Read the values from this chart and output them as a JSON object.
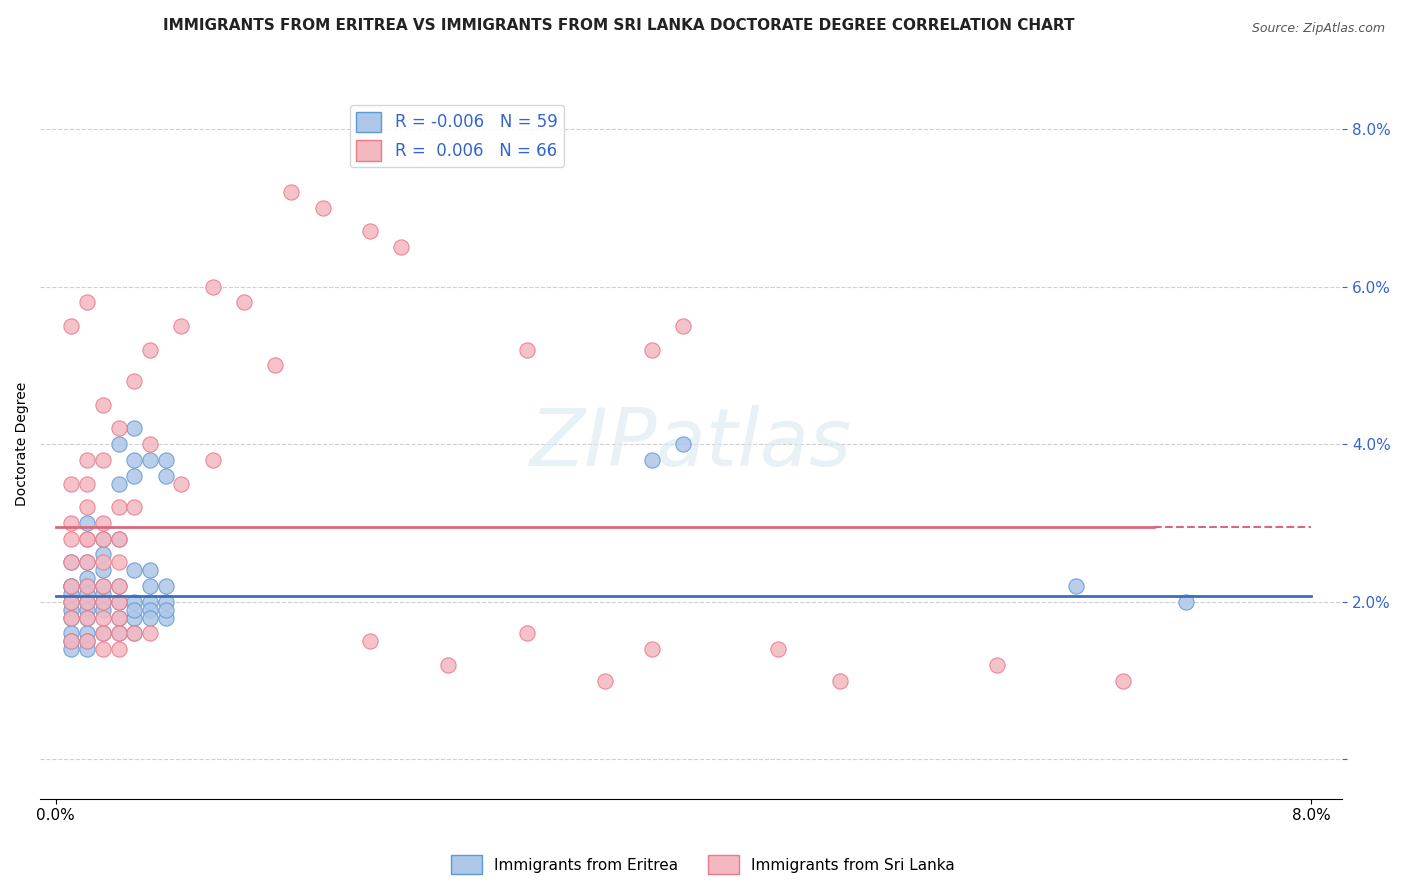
{
  "title": "IMMIGRANTS FROM ERITREA VS IMMIGRANTS FROM SRI LANKA DOCTORATE DEGREE CORRELATION CHART",
  "source": "Source: ZipAtlas.com",
  "ylabel": "Doctorate Degree",
  "xlim": [
    -0.001,
    0.082
  ],
  "ylim": [
    -0.005,
    0.085
  ],
  "x_ticks": [
    0.0,
    0.08
  ],
  "y_ticks": [
    0.0,
    0.02,
    0.04,
    0.06,
    0.08
  ],
  "watermark": "ZIPatlas",
  "eritrea_color": "#aec6e8",
  "eritrea_edge_color": "#5b9bd5",
  "srilanka_color": "#f4b8c1",
  "srilanka_edge_color": "#e87a8a",
  "eritrea_line_color": "#3a6fbd",
  "srilanka_line_color": "#d9687a",
  "eritrea_scatter": [
    [
      0.005,
      0.038
    ],
    [
      0.004,
      0.04
    ],
    [
      0.006,
      0.038
    ],
    [
      0.005,
      0.042
    ],
    [
      0.003,
      0.028
    ],
    [
      0.002,
      0.03
    ],
    [
      0.003,
      0.026
    ],
    [
      0.004,
      0.028
    ],
    [
      0.002,
      0.022
    ],
    [
      0.003,
      0.024
    ],
    [
      0.001,
      0.022
    ],
    [
      0.002,
      0.023
    ],
    [
      0.001,
      0.025
    ],
    [
      0.002,
      0.025
    ],
    [
      0.001,
      0.02
    ],
    [
      0.002,
      0.02
    ],
    [
      0.001,
      0.021
    ],
    [
      0.001,
      0.022
    ],
    [
      0.002,
      0.021
    ],
    [
      0.001,
      0.019
    ],
    [
      0.002,
      0.019
    ],
    [
      0.001,
      0.018
    ],
    [
      0.002,
      0.018
    ],
    [
      0.001,
      0.016
    ],
    [
      0.002,
      0.016
    ],
    [
      0.003,
      0.016
    ],
    [
      0.001,
      0.015
    ],
    [
      0.002,
      0.015
    ],
    [
      0.001,
      0.014
    ],
    [
      0.002,
      0.014
    ],
    [
      0.003,
      0.02
    ],
    [
      0.003,
      0.021
    ],
    [
      0.003,
      0.022
    ],
    [
      0.004,
      0.022
    ],
    [
      0.003,
      0.019
    ],
    [
      0.004,
      0.02
    ],
    [
      0.004,
      0.018
    ],
    [
      0.005,
      0.018
    ],
    [
      0.004,
      0.016
    ],
    [
      0.005,
      0.016
    ],
    [
      0.005,
      0.02
    ],
    [
      0.006,
      0.02
    ],
    [
      0.005,
      0.019
    ],
    [
      0.006,
      0.019
    ],
    [
      0.006,
      0.018
    ],
    [
      0.007,
      0.018
    ],
    [
      0.006,
      0.022
    ],
    [
      0.007,
      0.022
    ],
    [
      0.005,
      0.024
    ],
    [
      0.006,
      0.024
    ],
    [
      0.007,
      0.02
    ],
    [
      0.007,
      0.019
    ],
    [
      0.004,
      0.035
    ],
    [
      0.005,
      0.036
    ],
    [
      0.007,
      0.038
    ],
    [
      0.007,
      0.036
    ],
    [
      0.065,
      0.022
    ],
    [
      0.072,
      0.02
    ],
    [
      0.038,
      0.038
    ],
    [
      0.04,
      0.04
    ]
  ],
  "srilanka_scatter": [
    [
      0.015,
      0.072
    ],
    [
      0.017,
      0.07
    ],
    [
      0.02,
      0.067
    ],
    [
      0.022,
      0.065
    ],
    [
      0.01,
      0.06
    ],
    [
      0.012,
      0.058
    ],
    [
      0.008,
      0.055
    ],
    [
      0.006,
      0.052
    ],
    [
      0.014,
      0.05
    ],
    [
      0.03,
      0.052
    ],
    [
      0.001,
      0.055
    ],
    [
      0.002,
      0.058
    ],
    [
      0.005,
      0.048
    ],
    [
      0.003,
      0.045
    ],
    [
      0.004,
      0.042
    ],
    [
      0.006,
      0.04
    ],
    [
      0.002,
      0.038
    ],
    [
      0.003,
      0.038
    ],
    [
      0.008,
      0.035
    ],
    [
      0.01,
      0.038
    ],
    [
      0.001,
      0.035
    ],
    [
      0.002,
      0.035
    ],
    [
      0.004,
      0.032
    ],
    [
      0.005,
      0.032
    ],
    [
      0.001,
      0.03
    ],
    [
      0.002,
      0.032
    ],
    [
      0.003,
      0.028
    ],
    [
      0.004,
      0.028
    ],
    [
      0.002,
      0.028
    ],
    [
      0.003,
      0.03
    ],
    [
      0.001,
      0.025
    ],
    [
      0.002,
      0.025
    ],
    [
      0.003,
      0.025
    ],
    [
      0.004,
      0.025
    ],
    [
      0.001,
      0.028
    ],
    [
      0.002,
      0.028
    ],
    [
      0.001,
      0.022
    ],
    [
      0.002,
      0.022
    ],
    [
      0.003,
      0.022
    ],
    [
      0.004,
      0.022
    ],
    [
      0.001,
      0.02
    ],
    [
      0.002,
      0.02
    ],
    [
      0.003,
      0.02
    ],
    [
      0.004,
      0.02
    ],
    [
      0.001,
      0.018
    ],
    [
      0.002,
      0.018
    ],
    [
      0.003,
      0.018
    ],
    [
      0.004,
      0.018
    ],
    [
      0.003,
      0.016
    ],
    [
      0.004,
      0.016
    ],
    [
      0.005,
      0.016
    ],
    [
      0.006,
      0.016
    ],
    [
      0.02,
      0.015
    ],
    [
      0.03,
      0.016
    ],
    [
      0.001,
      0.015
    ],
    [
      0.002,
      0.015
    ],
    [
      0.003,
      0.014
    ],
    [
      0.004,
      0.014
    ],
    [
      0.038,
      0.014
    ],
    [
      0.046,
      0.014
    ],
    [
      0.025,
      0.012
    ],
    [
      0.035,
      0.01
    ],
    [
      0.05,
      0.01
    ],
    [
      0.06,
      0.012
    ],
    [
      0.068,
      0.01
    ],
    [
      0.04,
      0.055
    ],
    [
      0.038,
      0.052
    ]
  ],
  "eritrea_trend_y": 0.0207,
  "srilanka_trend_solid_y": 0.0295,
  "srilanka_trend_dashed_y_start": 0.0295,
  "srilanka_trend_dashed_y_end": 0.0295,
  "background_color": "#ffffff",
  "grid_color": "#d0d0d0",
  "title_fontsize": 11,
  "axis_label_fontsize": 10,
  "tick_fontsize": 11,
  "legend_fontsize": 12
}
